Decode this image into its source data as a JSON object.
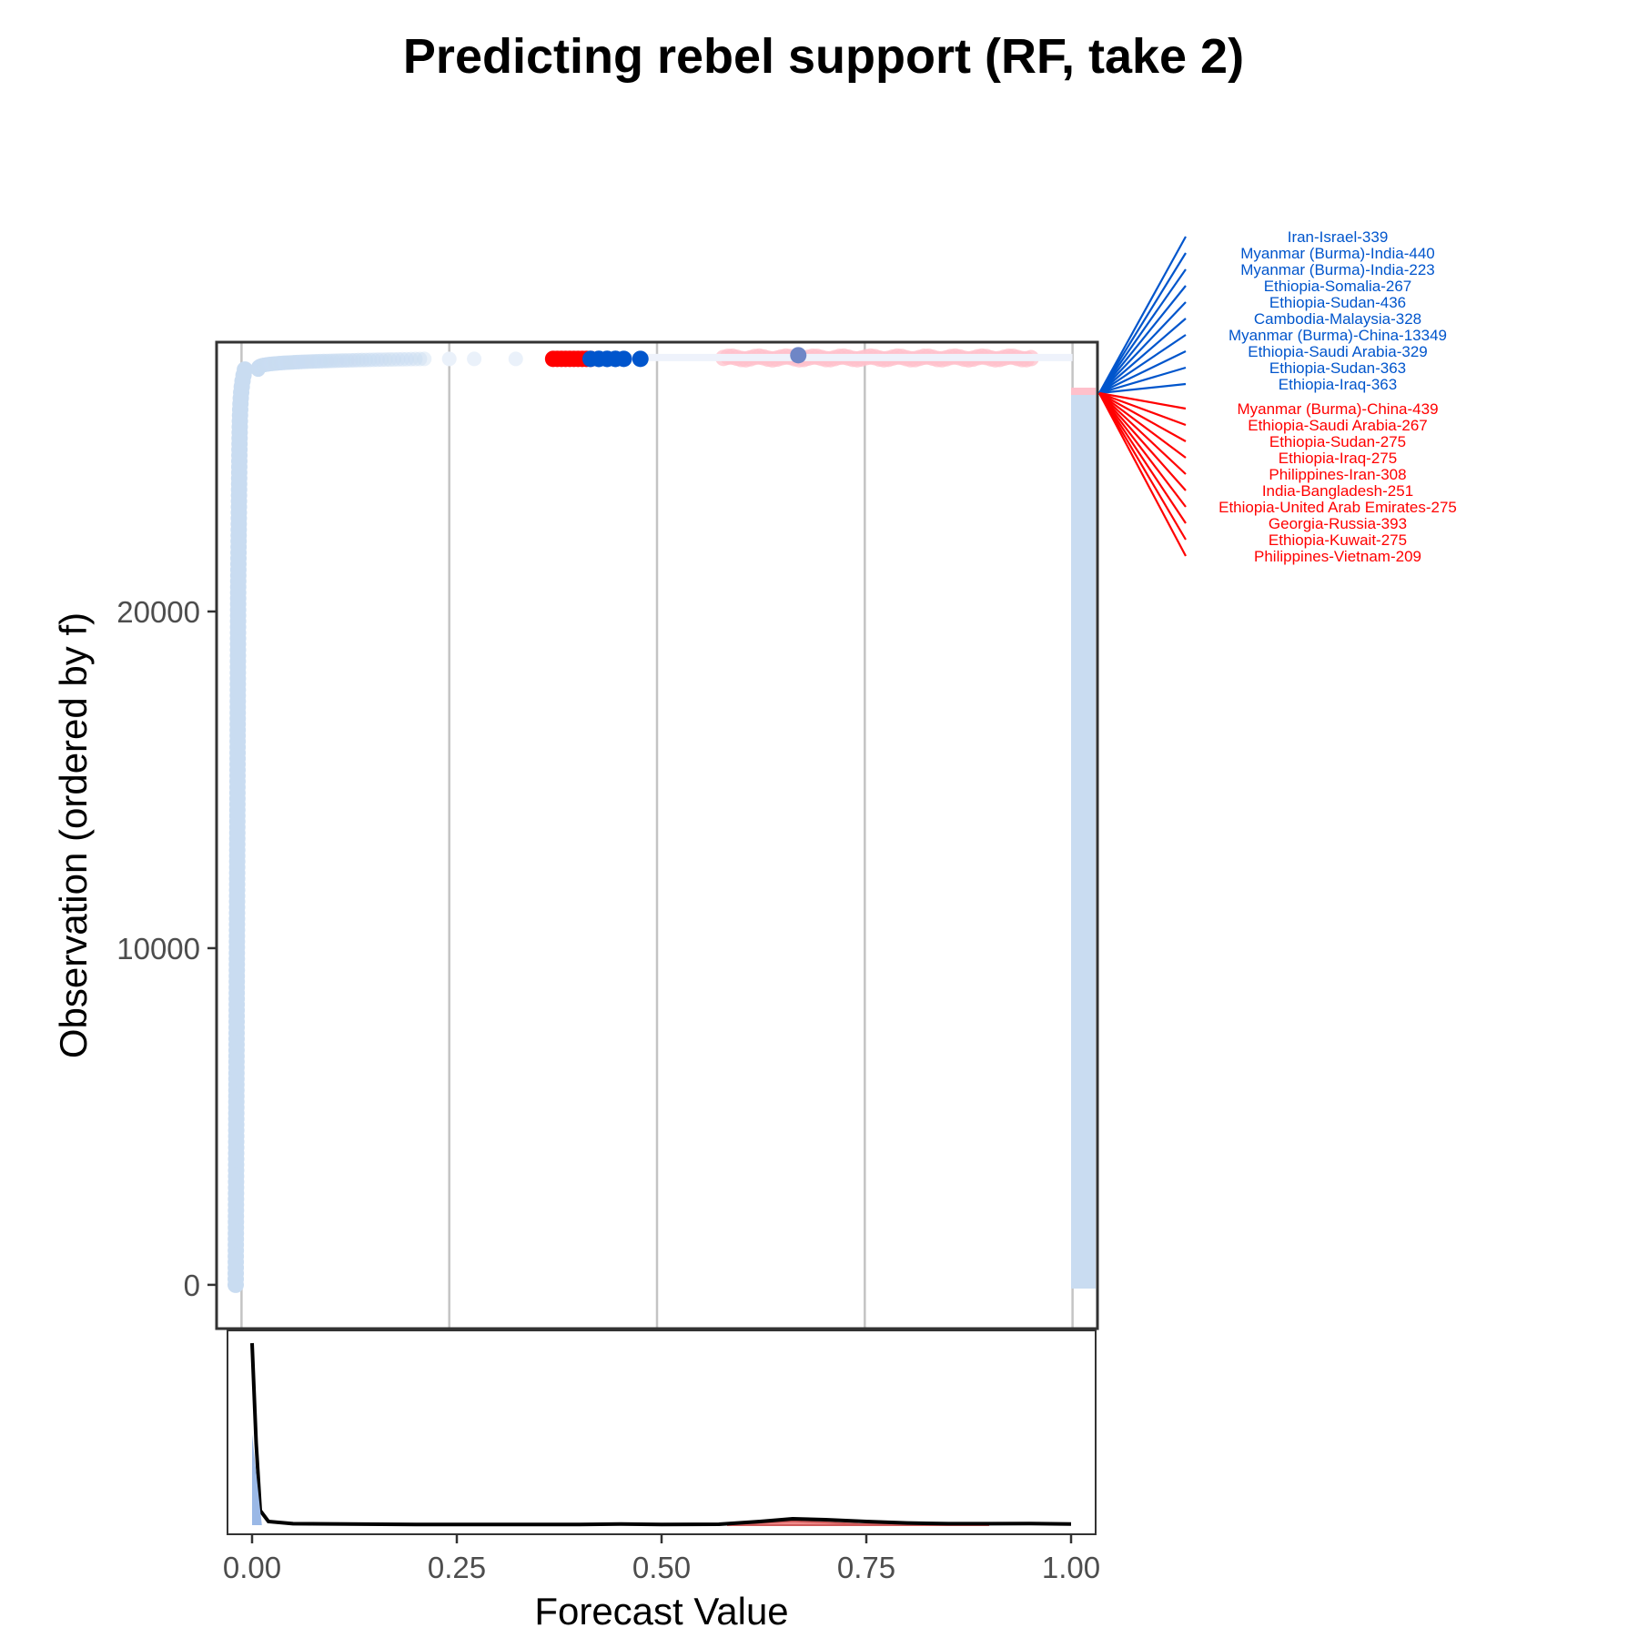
{
  "chart_data": {
    "type": "scatter",
    "title": "Predicting rebel support (RF, take 2)",
    "xlabel": "Forecast Value",
    "ylabel": "Observation (ordered by f)",
    "xlim": [
      -0.03,
      1.03
    ],
    "ylim": [
      -1300,
      28000
    ],
    "x_ticks": [
      "0.00",
      "0.25",
      "0.50",
      "0.75",
      "1.00"
    ],
    "y_ticks": [
      "0",
      "10000",
      "20000"
    ],
    "n_observations": 27600,
    "grid": "vertical major lines",
    "colors": {
      "negative": "#c9dcf1",
      "positive": "#ffc0cb",
      "false_positive": "#ff0000",
      "false_negative": "#0055cc",
      "density_line": "#000000"
    },
    "false_negatives": [
      {
        "label": "Iran-Israel-339",
        "f": 0.42
      },
      {
        "label": "Myanmar (Burma)-India-440",
        "f": 0.43
      },
      {
        "label": "Myanmar (Burma)-India-223",
        "f": 0.43
      },
      {
        "label": "Ethiopia-Somalia-267",
        "f": 0.44
      },
      {
        "label": "Ethiopia-Sudan-436",
        "f": 0.44
      },
      {
        "label": "Cambodia-Malaysia-328",
        "f": 0.45
      },
      {
        "label": "Myanmar (Burma)-China-13349",
        "f": 0.45
      },
      {
        "label": "Ethiopia-Saudi Arabia-329",
        "f": 0.46
      },
      {
        "label": "Ethiopia-Sudan-363",
        "f": 0.48
      },
      {
        "label": "Ethiopia-Iraq-363",
        "f": 0.67
      }
    ],
    "false_positives": [
      {
        "label": "Myanmar (Burma)-China-439",
        "f": 0.375
      },
      {
        "label": "Ethiopia-Saudi Arabia-267",
        "f": 0.38
      },
      {
        "label": "Ethiopia-Sudan-275",
        "f": 0.385
      },
      {
        "label": "Ethiopia-Iraq-275",
        "f": 0.39
      },
      {
        "label": "Philippines-Iran-308",
        "f": 0.395
      },
      {
        "label": "India-Bangladesh-251",
        "f": 0.4
      },
      {
        "label": "Ethiopia-United Arab Emirates-275",
        "f": 0.405
      },
      {
        "label": "Georgia-Russia-393",
        "f": 0.41
      },
      {
        "label": "Ethiopia-Kuwait-275",
        "f": 0.415
      },
      {
        "label": "Philippines-Vietnam-209",
        "f": 0.42
      }
    ],
    "density": {
      "xlim": [
        -0.03,
        1.03
      ],
      "all": [
        [
          0.0,
          1.0
        ],
        [
          0.005,
          0.45
        ],
        [
          0.01,
          0.08
        ],
        [
          0.02,
          0.02
        ],
        [
          0.05,
          0.008
        ],
        [
          0.2,
          0.004
        ],
        [
          0.4,
          0.004
        ],
        [
          0.45,
          0.006
        ],
        [
          0.5,
          0.004
        ],
        [
          0.57,
          0.005
        ],
        [
          0.62,
          0.02
        ],
        [
          0.66,
          0.035
        ],
        [
          0.7,
          0.03
        ],
        [
          0.75,
          0.02
        ],
        [
          0.8,
          0.012
        ],
        [
          0.85,
          0.008
        ],
        [
          0.9,
          0.008
        ],
        [
          0.95,
          0.009
        ],
        [
          1.0,
          0.006
        ]
      ],
      "positive": [
        [
          0.58,
          0.0
        ],
        [
          0.62,
          0.012
        ],
        [
          0.66,
          0.022
        ],
        [
          0.7,
          0.015
        ],
        [
          0.74,
          0.006
        ],
        [
          0.8,
          0.002
        ],
        [
          0.9,
          0.0
        ]
      ]
    }
  }
}
